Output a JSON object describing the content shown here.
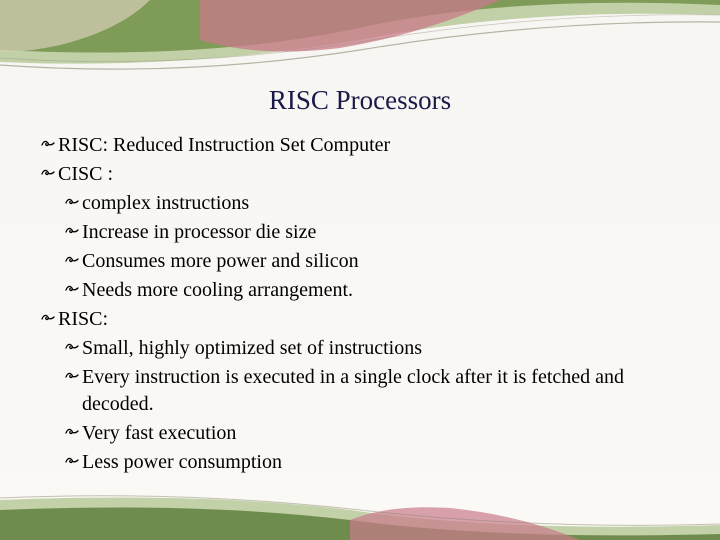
{
  "title": "RISC Processors",
  "bullets": [
    {
      "level": 0,
      "text": "RISC: Reduced Instruction Set Computer"
    },
    {
      "level": 0,
      "text": "CISC :"
    },
    {
      "level": 1,
      "text": "complex instructions"
    },
    {
      "level": 1,
      "text": "Increase in processor die size"
    },
    {
      "level": 1,
      "text": "Consumes more power and silicon"
    },
    {
      "level": 1,
      "text": "Needs more cooling arrangement."
    },
    {
      "level": 0,
      "text": "RISC:"
    },
    {
      "level": 1,
      "text": "Small, highly optimized set of instructions"
    },
    {
      "level": 1,
      "text": "Every instruction is executed in a single clock after it is fetched and decoded."
    },
    {
      "level": 1,
      "text": "Very fast execution"
    },
    {
      "level": 1,
      "text": "Less power consumption"
    }
  ],
  "styling": {
    "slide_bg": "#f8f6f2",
    "title_color": "#1a1a4a",
    "title_fontsize": 27,
    "body_fontsize": 20,
    "bullet_glyph": "་",
    "swoosh_colors": {
      "green_dark": "#5a7a3a",
      "green_light": "#8aaa5a",
      "pink": "#c97a8a",
      "cream": "#d8d0b8",
      "line": "#888870"
    }
  }
}
